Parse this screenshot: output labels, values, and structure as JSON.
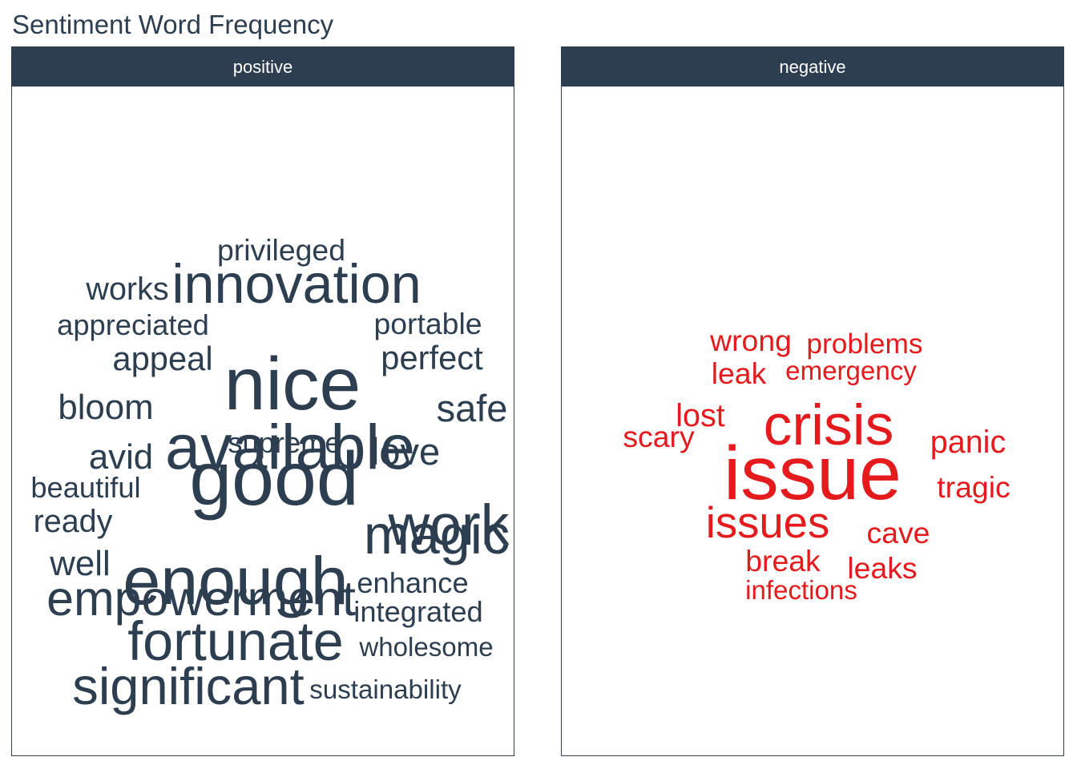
{
  "title": "Sentiment Word Frequency",
  "chart_data": {
    "type": "wordcloud",
    "title": "Sentiment Word Frequency",
    "panels": [
      {
        "label": "positive",
        "color": "#2c3e50",
        "words": [
          {
            "text": "good",
            "weight": 100
          },
          {
            "text": "nice",
            "weight": 98
          },
          {
            "text": "enough",
            "weight": 90
          },
          {
            "text": "available",
            "weight": 85
          },
          {
            "text": "work",
            "weight": 78
          },
          {
            "text": "innovation",
            "weight": 75
          },
          {
            "text": "magic",
            "weight": 75
          },
          {
            "text": "fortunate",
            "weight": 75
          },
          {
            "text": "significant",
            "weight": 72
          },
          {
            "text": "empowerment",
            "weight": 68
          },
          {
            "text": "safe",
            "weight": 55
          },
          {
            "text": "love",
            "weight": 55
          },
          {
            "text": "bloom",
            "weight": 52
          },
          {
            "text": "avid",
            "weight": 52
          },
          {
            "text": "well",
            "weight": 52
          },
          {
            "text": "perfect",
            "weight": 50
          },
          {
            "text": "appeal",
            "weight": 50
          },
          {
            "text": "works",
            "weight": 48
          },
          {
            "text": "ready",
            "weight": 48
          },
          {
            "text": "privileged",
            "weight": 46
          },
          {
            "text": "portable",
            "weight": 46
          },
          {
            "text": "appreciated",
            "weight": 45
          },
          {
            "text": "beautiful",
            "weight": 45
          },
          {
            "text": "supreme",
            "weight": 45
          },
          {
            "text": "enhance",
            "weight": 45
          },
          {
            "text": "integrated",
            "weight": 45
          },
          {
            "text": "wholesome",
            "weight": 42
          },
          {
            "text": "sustainability",
            "weight": 42
          }
        ]
      },
      {
        "label": "negative",
        "color": "#e41a1c",
        "words": [
          {
            "text": "issue",
            "weight": 100
          },
          {
            "text": "crisis",
            "weight": 78
          },
          {
            "text": "issues",
            "weight": 62
          },
          {
            "text": "panic",
            "weight": 48
          },
          {
            "text": "lost",
            "weight": 48
          },
          {
            "text": "wrong",
            "weight": 46
          },
          {
            "text": "leak",
            "weight": 46
          },
          {
            "text": "scary",
            "weight": 46
          },
          {
            "text": "tragic",
            "weight": 46
          },
          {
            "text": "cave",
            "weight": 46
          },
          {
            "text": "break",
            "weight": 46
          },
          {
            "text": "leaks",
            "weight": 46
          },
          {
            "text": "problems",
            "weight": 44
          },
          {
            "text": "emergency",
            "weight": 42
          },
          {
            "text": "infections",
            "weight": 42
          }
        ]
      }
    ]
  }
}
